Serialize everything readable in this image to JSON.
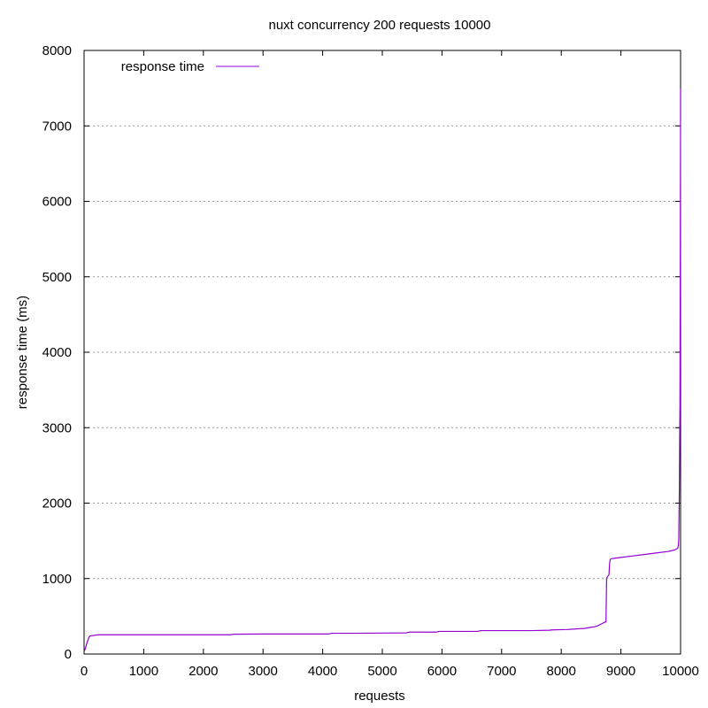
{
  "chart_data": {
    "type": "line",
    "title": "nuxt concurrency 200 requests 10000",
    "xlabel": "requests",
    "ylabel": "response time (ms)",
    "xlim": [
      0,
      10000
    ],
    "ylim": [
      0,
      8000
    ],
    "xticks": [
      "0",
      "1000",
      "2000",
      "3000",
      "4000",
      "5000",
      "6000",
      "7000",
      "8000",
      "9000",
      "10000"
    ],
    "yticks": [
      "0",
      "1000",
      "2000",
      "3000",
      "4000",
      "5000",
      "6000",
      "7000",
      "8000"
    ],
    "grid": "horizontal-dotted",
    "legend_position": "top-left",
    "series": [
      {
        "name": "response time",
        "color": "#9400d3",
        "x": [
          0,
          20,
          50,
          80,
          100,
          150,
          200,
          250,
          500,
          1000,
          2000,
          2450,
          2500,
          3000,
          4100,
          4150,
          4500,
          5000,
          5400,
          5450,
          5900,
          5950,
          6600,
          6650,
          7500,
          7800,
          7850,
          8100,
          8200,
          8300,
          8400,
          8500,
          8550,
          8600,
          8650,
          8700,
          8720,
          8750,
          8760,
          8770,
          8780,
          8800,
          8810,
          8820,
          8830,
          8850,
          8900,
          9000,
          9200,
          9400,
          9600,
          9800,
          9900,
          9950,
          9960,
          9970,
          9980,
          9985,
          9990,
          9995,
          10000
        ],
        "values": [
          30,
          70,
          150,
          220,
          240,
          245,
          250,
          255,
          255,
          255,
          255,
          255,
          262,
          265,
          265,
          275,
          275,
          278,
          280,
          290,
          290,
          300,
          300,
          310,
          310,
          315,
          320,
          325,
          330,
          335,
          340,
          355,
          360,
          370,
          390,
          410,
          420,
          425,
          1000,
          1020,
          1030,
          1050,
          1200,
          1250,
          1260,
          1265,
          1270,
          1280,
          1300,
          1320,
          1340,
          1360,
          1380,
          1400,
          1420,
          1520,
          2200,
          2800,
          3300,
          5000,
          7500
        ]
      }
    ]
  }
}
